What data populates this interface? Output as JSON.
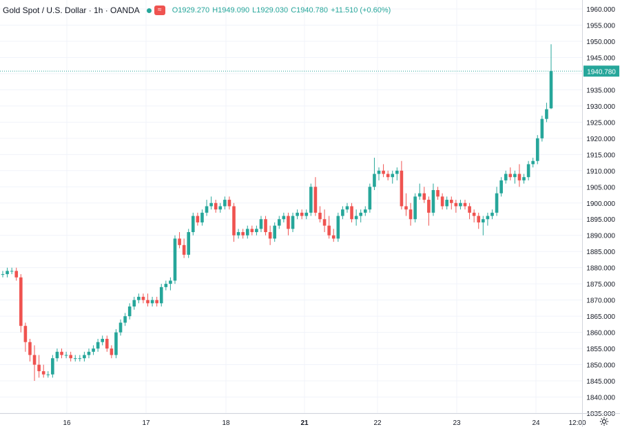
{
  "legend": {
    "symbol": "Gold Spot / U.S. Dollar · 1h · OANDA",
    "o": "O1929.270",
    "h": "H1949.090",
    "l": "L1929.030",
    "c": "C1940.780",
    "chg": "+11.510 (+0.60%)"
  },
  "colors": {
    "up": "#26a69a",
    "down": "#ef5350",
    "grid": "#f0f3fa",
    "price": "#26a69a"
  },
  "chart_data": {
    "type": "candlestick",
    "last_price": "1940.780",
    "y_ticks": [
      "1960.000",
      "1955.000",
      "1950.000",
      "1945.000",
      "1940.000",
      "1935.000",
      "1930.000",
      "1925.000",
      "1920.000",
      "1915.000",
      "1910.000",
      "1905.000",
      "1900.000",
      "1895.000",
      "1890.000",
      "1885.000",
      "1880.000",
      "1875.000",
      "1870.000",
      "1865.000",
      "1860.000",
      "1855.000",
      "1850.000",
      "1845.000",
      "1840.000",
      "1835.000"
    ],
    "x_ticks": [
      "16",
      "17",
      "18",
      "21",
      "22",
      "23",
      "24",
      "12:00"
    ],
    "ylim": [
      1835,
      1960
    ],
    "candles": [
      [
        1878,
        1879,
        1877,
        1878
      ],
      [
        1878,
        1880,
        1877,
        1879
      ],
      [
        1879,
        1880,
        1878,
        1879
      ],
      [
        1879,
        1880,
        1876,
        1877
      ],
      [
        1877,
        1878,
        1860,
        1862
      ],
      [
        1862,
        1863,
        1854,
        1857
      ],
      [
        1857,
        1858,
        1851,
        1853
      ],
      [
        1853,
        1856,
        1845,
        1850
      ],
      [
        1850,
        1853,
        1846,
        1848
      ],
      [
        1848,
        1850,
        1846,
        1847
      ],
      [
        1847,
        1848,
        1846,
        1847
      ],
      [
        1847,
        1853,
        1846,
        1852
      ],
      [
        1852,
        1855,
        1851,
        1854
      ],
      [
        1854,
        1855,
        1852,
        1853
      ],
      [
        1853,
        1854,
        1852,
        1853
      ],
      [
        1853,
        1854,
        1851,
        1852
      ],
      [
        1852,
        1853,
        1851,
        1852
      ],
      [
        1852,
        1853,
        1851,
        1852
      ],
      [
        1852,
        1854,
        1851,
        1853
      ],
      [
        1853,
        1855,
        1852,
        1854
      ],
      [
        1854,
        1856,
        1853,
        1855
      ],
      [
        1855,
        1858,
        1854,
        1857
      ],
      [
        1857,
        1859,
        1856,
        1858
      ],
      [
        1858,
        1859,
        1854,
        1855
      ],
      [
        1855,
        1856,
        1852,
        1853
      ],
      [
        1853,
        1861,
        1852,
        1860
      ],
      [
        1860,
        1864,
        1859,
        1863
      ],
      [
        1863,
        1866,
        1862,
        1865
      ],
      [
        1865,
        1869,
        1864,
        1868
      ],
      [
        1868,
        1871,
        1867,
        1870
      ],
      [
        1870,
        1872,
        1869,
        1871
      ],
      [
        1871,
        1872,
        1869,
        1870
      ],
      [
        1870,
        1872,
        1868,
        1869
      ],
      [
        1869,
        1871,
        1868,
        1870
      ],
      [
        1870,
        1871,
        1868,
        1869
      ],
      [
        1869,
        1875,
        1868,
        1874
      ],
      [
        1874,
        1876,
        1873,
        1875
      ],
      [
        1875,
        1877,
        1873,
        1876
      ],
      [
        1876,
        1890,
        1875,
        1889
      ],
      [
        1889,
        1891,
        1886,
        1887
      ],
      [
        1887,
        1889,
        1883,
        1884
      ],
      [
        1884,
        1892,
        1883,
        1891
      ],
      [
        1891,
        1897,
        1890,
        1896
      ],
      [
        1896,
        1897,
        1893,
        1894
      ],
      [
        1894,
        1898,
        1893,
        1897
      ],
      [
        1897,
        1901,
        1896,
        1899
      ],
      [
        1899,
        1902,
        1898,
        1900
      ],
      [
        1900,
        1901,
        1897,
        1898
      ],
      [
        1898,
        1900,
        1897,
        1899
      ],
      [
        1899,
        1902,
        1898,
        1901
      ],
      [
        1901,
        1902,
        1898,
        1899
      ],
      [
        1899,
        1900,
        1888,
        1890
      ],
      [
        1890,
        1892,
        1889,
        1891
      ],
      [
        1891,
        1892,
        1889,
        1890
      ],
      [
        1890,
        1893,
        1889,
        1892
      ],
      [
        1892,
        1893,
        1890,
        1891
      ],
      [
        1891,
        1893,
        1890,
        1892
      ],
      [
        1892,
        1896,
        1891,
        1895
      ],
      [
        1895,
        1896,
        1890,
        1891
      ],
      [
        1891,
        1893,
        1887,
        1889
      ],
      [
        1889,
        1894,
        1888,
        1893
      ],
      [
        1893,
        1896,
        1892,
        1895
      ],
      [
        1895,
        1897,
        1894,
        1896
      ],
      [
        1896,
        1897,
        1890,
        1892
      ],
      [
        1892,
        1897,
        1891,
        1896
      ],
      [
        1896,
        1898,
        1895,
        1897
      ],
      [
        1897,
        1898,
        1895,
        1896
      ],
      [
        1896,
        1898,
        1895,
        1897
      ],
      [
        1897,
        1906,
        1896,
        1905
      ],
      [
        1905,
        1908,
        1896,
        1897
      ],
      [
        1897,
        1899,
        1894,
        1895
      ],
      [
        1895,
        1898,
        1891,
        1893
      ],
      [
        1893,
        1896,
        1889,
        1890
      ],
      [
        1890,
        1892,
        1888,
        1889
      ],
      [
        1889,
        1897,
        1888,
        1896
      ],
      [
        1896,
        1899,
        1895,
        1898
      ],
      [
        1898,
        1900,
        1897,
        1899
      ],
      [
        1899,
        1900,
        1894,
        1895
      ],
      [
        1895,
        1898,
        1893,
        1896
      ],
      [
        1896,
        1898,
        1894,
        1897
      ],
      [
        1897,
        1899,
        1896,
        1898
      ],
      [
        1898,
        1906,
        1897,
        1905
      ],
      [
        1905,
        1914,
        1904,
        1909
      ],
      [
        1909,
        1911,
        1907,
        1910
      ],
      [
        1910,
        1912,
        1908,
        1909
      ],
      [
        1909,
        1910,
        1907,
        1908
      ],
      [
        1908,
        1910,
        1906,
        1909
      ],
      [
        1909,
        1911,
        1907,
        1910
      ],
      [
        1910,
        1913,
        1898,
        1899
      ],
      [
        1899,
        1903,
        1896,
        1898
      ],
      [
        1898,
        1900,
        1893,
        1895
      ],
      [
        1895,
        1903,
        1894,
        1902
      ],
      [
        1902,
        1906,
        1901,
        1903
      ],
      [
        1903,
        1905,
        1900,
        1901
      ],
      [
        1901,
        1902,
        1893,
        1897
      ],
      [
        1897,
        1906,
        1896,
        1904
      ],
      [
        1904,
        1905,
        1901,
        1902
      ],
      [
        1902,
        1903,
        1898,
        1899
      ],
      [
        1899,
        1902,
        1898,
        1901
      ],
      [
        1901,
        1902,
        1898,
        1900
      ],
      [
        1900,
        1901,
        1897,
        1899
      ],
      [
        1899,
        1901,
        1898,
        1900
      ],
      [
        1900,
        1901,
        1898,
        1899
      ],
      [
        1899,
        1900,
        1895,
        1897
      ],
      [
        1897,
        1898,
        1894,
        1896
      ],
      [
        1896,
        1897,
        1892,
        1894
      ],
      [
        1894,
        1896,
        1890,
        1895
      ],
      [
        1895,
        1897,
        1893,
        1896
      ],
      [
        1896,
        1898,
        1895,
        1897
      ],
      [
        1897,
        1905,
        1896,
        1903
      ],
      [
        1903,
        1908,
        1902,
        1907
      ],
      [
        1907,
        1910,
        1906,
        1909
      ],
      [
        1909,
        1911,
        1907,
        1908
      ],
      [
        1908,
        1910,
        1906,
        1909
      ],
      [
        1909,
        1912,
        1905,
        1907
      ],
      [
        1907,
        1909,
        1906,
        1908
      ],
      [
        1908,
        1913,
        1907,
        1912
      ],
      [
        1912,
        1914,
        1911,
        1913
      ],
      [
        1913,
        1921,
        1912,
        1920
      ],
      [
        1920,
        1927,
        1919,
        1926
      ],
      [
        1926,
        1931,
        1925,
        1929
      ],
      [
        1929.27,
        1949.09,
        1929.03,
        1940.78
      ]
    ]
  }
}
